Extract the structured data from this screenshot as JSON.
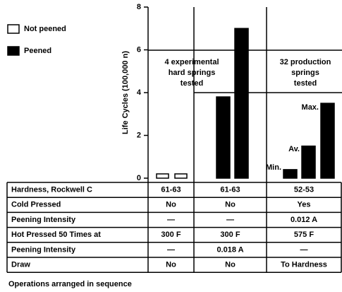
{
  "chart_data": {
    "type": "bar",
    "ylabel": "Life Cycles (100,000 n)",
    "ylim": [
      0,
      8
    ],
    "yticks": [
      0,
      2,
      4,
      6,
      8
    ],
    "series": [
      {
        "name": "Not peened",
        "color": "#ffffff",
        "values": [
          0.2,
          0.2
        ]
      },
      {
        "name": "Peened",
        "color": "#000000",
        "values": [
          3.8,
          7.0,
          0.4,
          1.5,
          3.5
        ]
      }
    ],
    "annotations": [
      [
        "4 experimental",
        "hard springs",
        "tested"
      ],
      [
        "32 production",
        "springs",
        "tested"
      ]
    ],
    "bar_labels": [
      "Min.",
      "Av.",
      "Max."
    ]
  },
  "table": {
    "rows": [
      [
        "Hardness, Rockwell C",
        "61-63",
        "61-63",
        "52-53"
      ],
      [
        "Cold Pressed",
        "No",
        "No",
        "Yes"
      ],
      [
        "Peening Intensity",
        "—",
        "—",
        "0.012 A"
      ],
      [
        "Hot Pressed 50 Times at",
        "300 F",
        "300 F",
        "575 F"
      ],
      [
        "Peening Intensity",
        "—",
        "0.018 A",
        "—"
      ],
      [
        "Draw",
        "No",
        "No",
        "To Hardness"
      ]
    ]
  },
  "footer": "Operations arranged in sequence"
}
